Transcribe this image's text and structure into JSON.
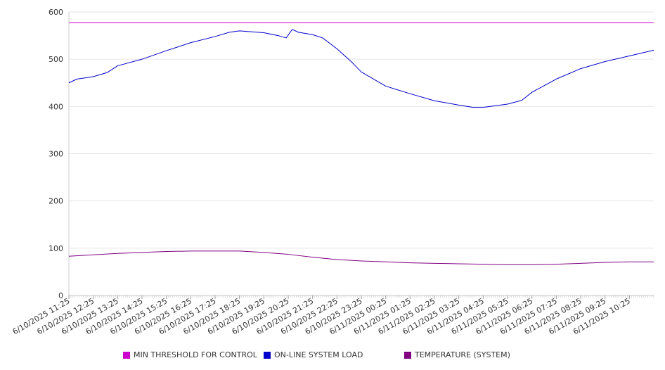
{
  "chart_data": {
    "type": "line",
    "title": "",
    "xlabel": "",
    "ylabel": "",
    "ylim": [
      0,
      600
    ],
    "yticks": [
      0,
      100,
      200,
      300,
      400,
      500,
      600
    ],
    "grid": true,
    "legend": "bottom",
    "x_tick_labels": [
      "6/10/2025 11:25",
      "6/10/2025 12:25",
      "6/10/2025 13:25",
      "6/10/2025 14:25",
      "6/10/2025 15:25",
      "6/10/2025 16:25",
      "6/10/2025 17:25",
      "6/10/2025 18:25",
      "6/10/2025 19:25",
      "6/10/2025 20:25",
      "6/10/2025 21:25",
      "6/10/2025 22:25",
      "6/10/2025 23:25",
      "6/11/2025 00:25",
      "6/11/2025 01:25",
      "6/11/2025 02:25",
      "6/11/2025 03:25",
      "6/11/2025 04:25",
      "6/11/2025 05:25",
      "6/11/2025 06:25",
      "6/11/2025 07:25",
      "6/11/2025 08:25",
      "6/11/2025 09:25",
      "6/11/2025 10:25"
    ],
    "x_range": [
      "6/10/2025 11:25",
      "6/11/2025 11:25"
    ],
    "series": [
      {
        "name": "MIN THRESHOLD FOR CONTROL",
        "color": "#cc00cc",
        "points": [
          [
            "6/10/2025 11:25",
            577
          ],
          [
            "6/11/2025 11:25",
            577
          ]
        ]
      },
      {
        "name": "ON-LINE SYSTEM LOAD",
        "color": "#0000cc",
        "points": [
          [
            "6/10/2025 11:25",
            450
          ],
          [
            "6/10/2025 11:45",
            458
          ],
          [
            "6/10/2025 12:25",
            463
          ],
          [
            "6/10/2025 13:00",
            472
          ],
          [
            "6/10/2025 13:25",
            486
          ],
          [
            "6/10/2025 14:25",
            500
          ],
          [
            "6/10/2025 15:25",
            518
          ],
          [
            "6/10/2025 16:25",
            535
          ],
          [
            "6/10/2025 17:25",
            548
          ],
          [
            "6/10/2025 18:00",
            557
          ],
          [
            "6/10/2025 18:25",
            560
          ],
          [
            "6/10/2025 19:25",
            556
          ],
          [
            "6/10/2025 20:00",
            550
          ],
          [
            "6/10/2025 20:20",
            545
          ],
          [
            "6/10/2025 20:35",
            563
          ],
          [
            "6/10/2025 20:50",
            557
          ],
          [
            "6/10/2025 21:25",
            552
          ],
          [
            "6/10/2025 21:50",
            545
          ],
          [
            "6/10/2025 22:25",
            522
          ],
          [
            "6/10/2025 23:00",
            495
          ],
          [
            "6/10/2025 23:25",
            473
          ],
          [
            "6/11/2025 00:25",
            443
          ],
          [
            "6/11/2025 01:25",
            427
          ],
          [
            "6/11/2025 02:25",
            412
          ],
          [
            "6/11/2025 03:25",
            403
          ],
          [
            "6/11/2025 04:00",
            398
          ],
          [
            "6/11/2025 04:25",
            398
          ],
          [
            "6/11/2025 05:25",
            405
          ],
          [
            "6/11/2025 06:00",
            413
          ],
          [
            "6/11/2025 06:25",
            430
          ],
          [
            "6/11/2025 07:25",
            458
          ],
          [
            "6/11/2025 08:25",
            480
          ],
          [
            "6/11/2025 09:25",
            495
          ],
          [
            "6/11/2025 10:25",
            507
          ],
          [
            "6/11/2025 11:25",
            519
          ]
        ]
      },
      {
        "name": "TEMPERATURE (SYSTEM)",
        "color": "#800080",
        "points": [
          [
            "6/10/2025 11:25",
            83
          ],
          [
            "6/10/2025 12:25",
            86
          ],
          [
            "6/10/2025 13:25",
            89
          ],
          [
            "6/10/2025 14:25",
            91
          ],
          [
            "6/10/2025 15:25",
            93
          ],
          [
            "6/10/2025 16:25",
            94
          ],
          [
            "6/10/2025 17:25",
            94
          ],
          [
            "6/10/2025 18:25",
            94
          ],
          [
            "6/10/2025 19:25",
            91
          ],
          [
            "6/10/2025 20:25",
            87
          ],
          [
            "6/10/2025 21:25",
            81
          ],
          [
            "6/10/2025 22:25",
            76
          ],
          [
            "6/10/2025 23:25",
            73
          ],
          [
            "6/11/2025 00:25",
            71
          ],
          [
            "6/11/2025 01:25",
            69
          ],
          [
            "6/11/2025 02:25",
            68
          ],
          [
            "6/11/2025 03:25",
            67
          ],
          [
            "6/11/2025 04:25",
            66
          ],
          [
            "6/11/2025 05:25",
            65
          ],
          [
            "6/11/2025 06:25",
            65
          ],
          [
            "6/11/2025 07:25",
            66
          ],
          [
            "6/11/2025 08:25",
            68
          ],
          [
            "6/11/2025 09:25",
            70
          ],
          [
            "6/11/2025 10:25",
            71
          ],
          [
            "6/11/2025 11:25",
            71
          ]
        ]
      }
    ]
  }
}
